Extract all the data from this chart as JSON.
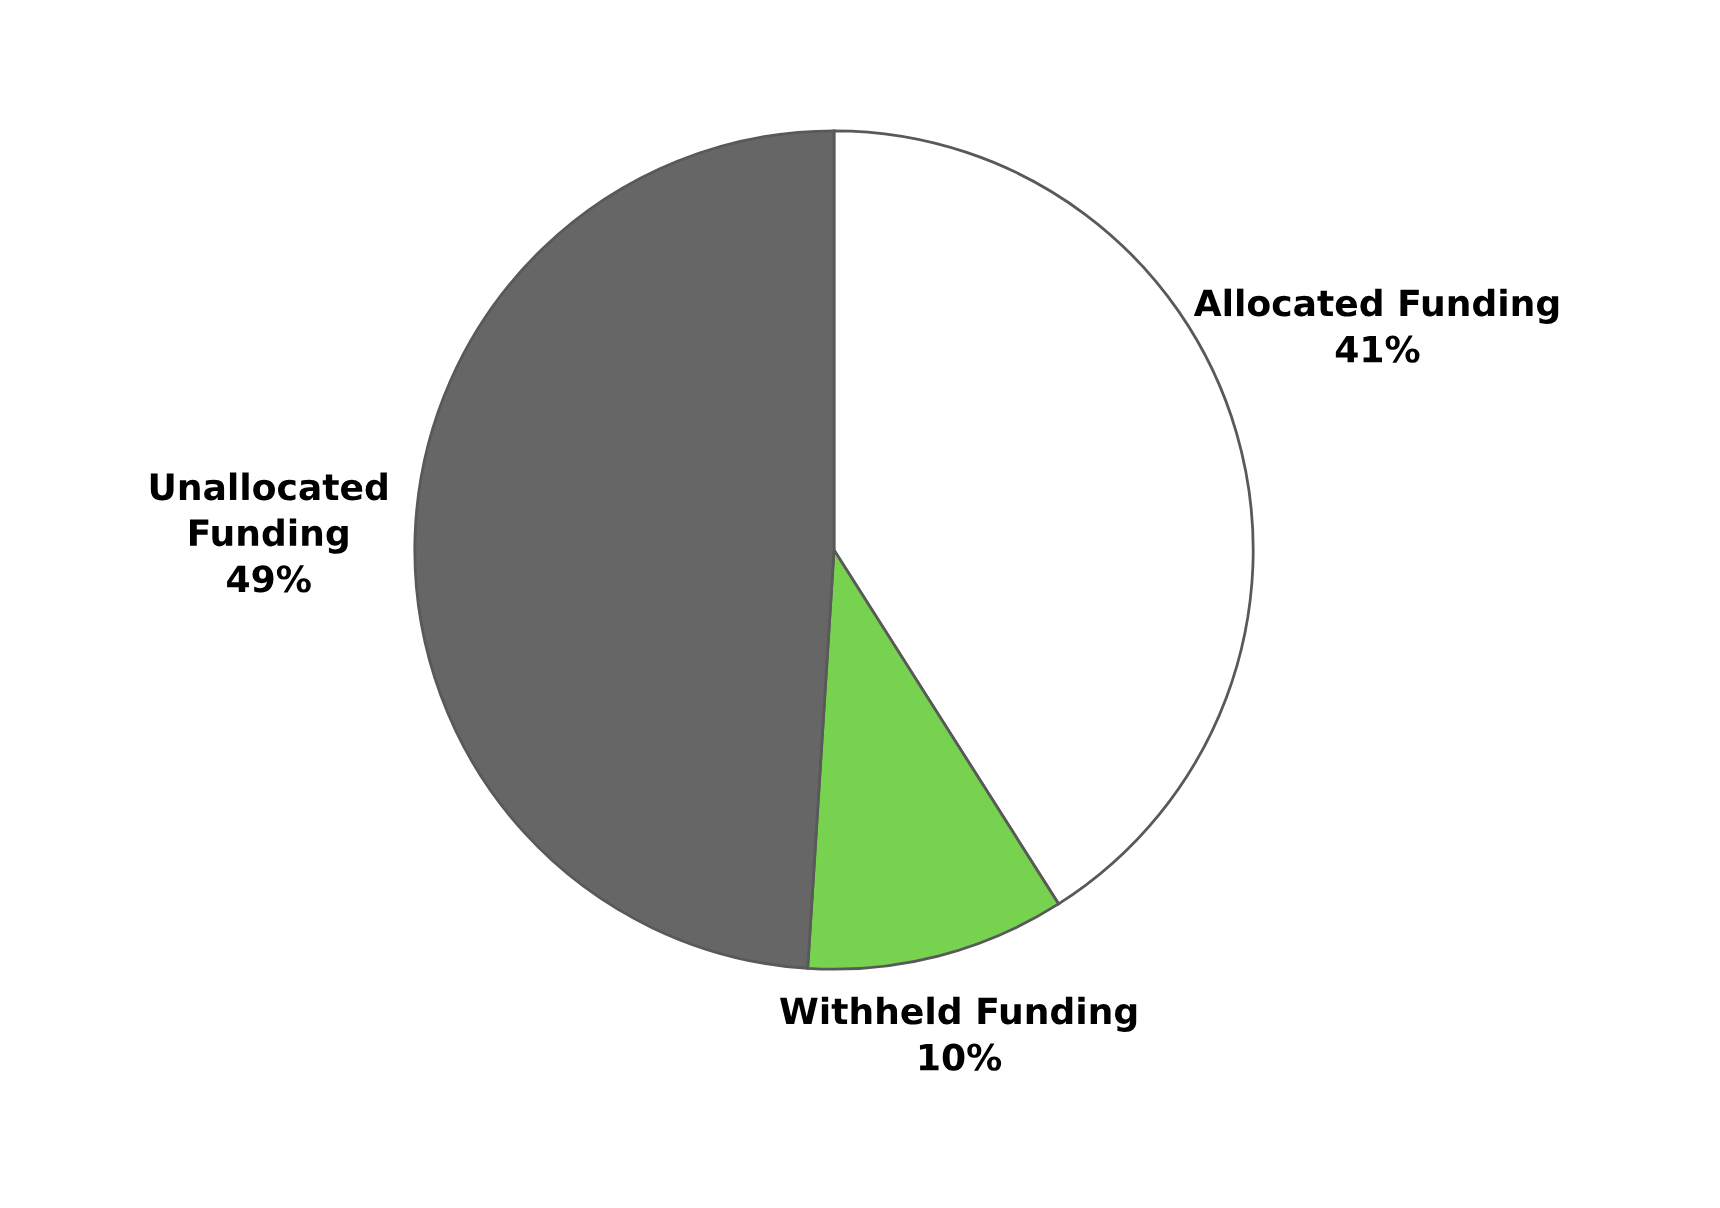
{
  "chart_data": {
    "type": "pie",
    "categories": [
      "Allocated Funding",
      "Withheld Funding",
      "Unallocated\nFunding"
    ],
    "values": [
      41,
      10,
      49
    ],
    "colors": [
      "#ffffff",
      "#77d34f",
      "#666666"
    ],
    "value_labels": [
      "41%",
      "10%",
      "49%"
    ]
  }
}
